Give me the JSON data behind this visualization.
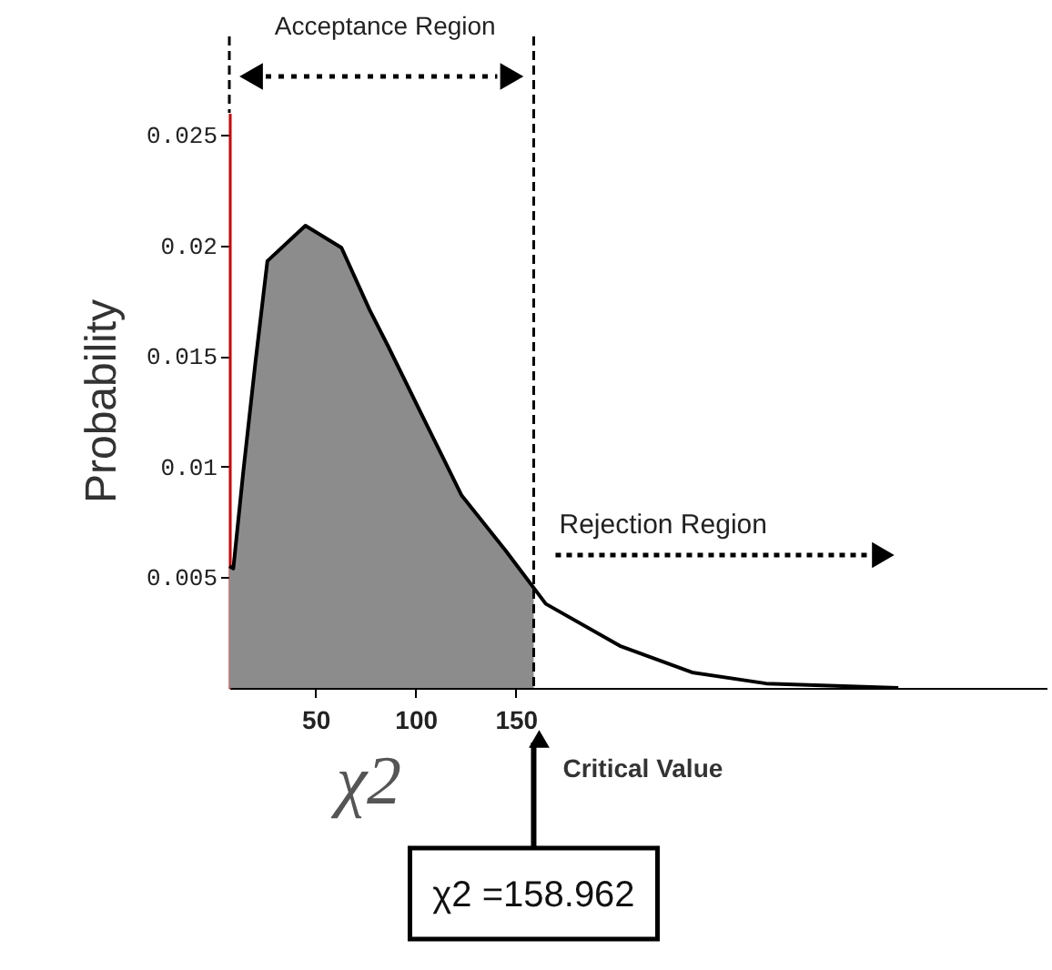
{
  "chart_data": {
    "type": "line",
    "xlabel": "χ2",
    "ylabel": "Probability",
    "xlim": [
      7,
      415
    ],
    "xticks": [
      50,
      100,
      150
    ],
    "ylim": [
      0,
      0.026
    ],
    "yticks": [
      {
        "value": 0.005,
        "label": "0.005"
      },
      {
        "value": 0.01,
        "label": "0.01"
      },
      {
        "value": 0.015,
        "label": "0.015"
      },
      {
        "value": 0.02,
        "label": "0.02"
      },
      {
        "value": 0.025,
        "label": "0.025"
      }
    ],
    "series": [
      {
        "type": "area",
        "color": "#8c8c8c",
        "x": [
          7,
          9,
          14,
          20,
          26,
          45,
          63,
          77,
          86,
          105,
          123,
          145,
          158.962
        ],
        "values": [
          0.0055,
          0.0054,
          0.0098,
          0.0147,
          0.0193,
          0.0209,
          0.0199,
          0.0171,
          0.0155,
          0.012,
          0.0087,
          0.0062,
          0.0046
        ]
      },
      {
        "type": "line",
        "color": "#000000",
        "x": [
          7,
          9,
          14,
          20,
          26,
          45,
          63,
          77,
          86,
          105,
          123,
          145,
          165,
          202,
          238,
          275,
          341
        ],
        "values": [
          0.0055,
          0.0054,
          0.0098,
          0.0147,
          0.0193,
          0.0209,
          0.0199,
          0.0171,
          0.0155,
          0.012,
          0.0087,
          0.0062,
          0.0038,
          0.0019,
          0.0007,
          0.0002,
          0
        ]
      }
    ],
    "ref_lines": [
      {
        "axis": "x",
        "value": 158.962,
        "label": "χ2 =158.962",
        "line_style": "dashed",
        "color": "#000000"
      }
    ],
    "annotations": [
      "Acceptance Region",
      "Rejection Region",
      "Critical Value"
    ],
    "grid": false
  }
}
